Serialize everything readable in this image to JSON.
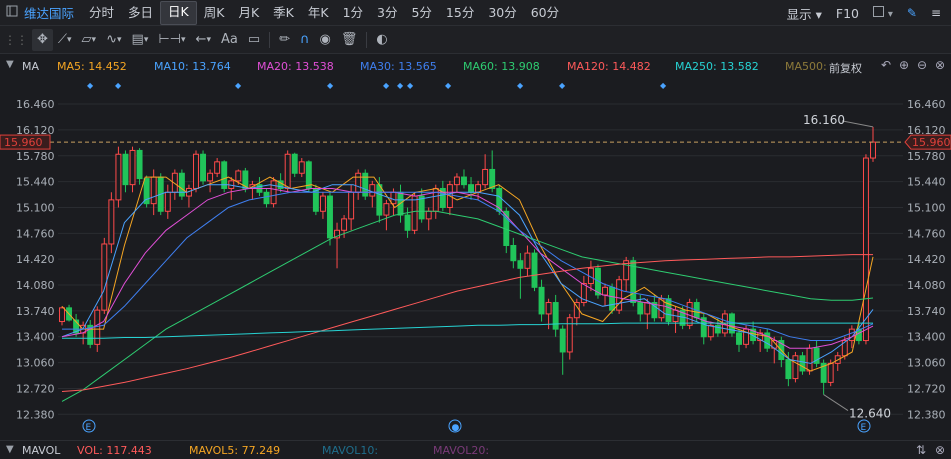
{
  "topbar": {
    "title": "维达国际",
    "periods": [
      "分时",
      "多日",
      "日K",
      "周K",
      "月K",
      "季K",
      "年K",
      "1分",
      "3分",
      "5分",
      "15分",
      "30分",
      "60分"
    ],
    "active_period": "日K",
    "display_label": "显示",
    "f10_label": "F10"
  },
  "toolbar": {
    "text_tool_label": "Aa",
    "tools": [
      "crosshair-icon",
      "line-icon",
      "channel-icon",
      "wave-icon",
      "fib-icon",
      "range-icon",
      "arrow-left-icon",
      "text-icon",
      "note-icon",
      "pencil-icon",
      "magnet-icon",
      "eye-icon",
      "trash-icon",
      "toggle-icon"
    ]
  },
  "ma_bar": {
    "name": "MA",
    "items": [
      {
        "label": "MA5: 14.452",
        "color": "#f5a623"
      },
      {
        "label": "MA10: 13.764",
        "color": "#4aa3ff"
      },
      {
        "label": "MA20: 13.538",
        "color": "#e04fd6"
      },
      {
        "label": "MA30: 13.565",
        "color": "#3f7ff0"
      },
      {
        "label": "MA60: 13.908",
        "color": "#2ecc71"
      },
      {
        "label": "MA120: 14.482",
        "color": "#ff5a5a"
      },
      {
        "label": "MA250: 13.582",
        "color": "#27d3d3"
      },
      {
        "label": "MA500:",
        "color": "#8d7a3a"
      }
    ],
    "adjust_label": "前复权"
  },
  "chart_data": {
    "type": "candlestick",
    "y_ticks": [
      "16.460",
      "16.120",
      "15.780",
      "15.440",
      "15.100",
      "14.760",
      "14.420",
      "14.080",
      "13.740",
      "13.400",
      "13.060",
      "12.720",
      "12.380"
    ],
    "ylim": [
      12.2,
      16.75
    ],
    "current_price": "15.960",
    "high_annotation": "16.160",
    "low_annotation": "12.640",
    "ohlc": [
      [
        13.6,
        13.8,
        13.55,
        13.78
      ],
      [
        13.78,
        13.82,
        13.6,
        13.62
      ],
      [
        13.62,
        13.7,
        13.4,
        13.45
      ],
      [
        13.45,
        13.6,
        13.3,
        13.55
      ],
      [
        13.55,
        13.62,
        13.25,
        13.3
      ],
      [
        13.3,
        13.8,
        13.2,
        13.75
      ],
      [
        13.75,
        14.7,
        13.7,
        14.62
      ],
      [
        14.62,
        15.3,
        14.5,
        15.2
      ],
      [
        15.2,
        15.9,
        15.1,
        15.8
      ],
      [
        15.8,
        15.85,
        15.3,
        15.4
      ],
      [
        15.4,
        15.9,
        15.3,
        15.85
      ],
      [
        15.85,
        15.88,
        15.4,
        15.48
      ],
      [
        15.48,
        15.52,
        15.1,
        15.15
      ],
      [
        15.15,
        15.6,
        15.0,
        15.5
      ],
      [
        15.5,
        15.55,
        15.0,
        15.05
      ],
      [
        15.05,
        15.4,
        14.95,
        15.3
      ],
      [
        15.3,
        15.6,
        15.2,
        15.55
      ],
      [
        15.55,
        15.6,
        15.2,
        15.25
      ],
      [
        15.25,
        15.4,
        15.1,
        15.35
      ],
      [
        15.35,
        15.85,
        15.3,
        15.8
      ],
      [
        15.8,
        15.85,
        15.4,
        15.45
      ],
      [
        15.45,
        15.6,
        15.3,
        15.55
      ],
      [
        15.55,
        15.75,
        15.5,
        15.7
      ],
      [
        15.7,
        15.72,
        15.3,
        15.35
      ],
      [
        15.35,
        15.5,
        15.2,
        15.45
      ],
      [
        15.45,
        15.6,
        15.4,
        15.58
      ],
      [
        15.58,
        15.62,
        15.3,
        15.35
      ],
      [
        15.35,
        15.45,
        15.2,
        15.4
      ],
      [
        15.4,
        15.5,
        15.25,
        15.3
      ],
      [
        15.3,
        15.35,
        15.1,
        15.15
      ],
      [
        15.15,
        15.5,
        15.1,
        15.45
      ],
      [
        15.45,
        15.55,
        15.3,
        15.35
      ],
      [
        15.35,
        15.85,
        15.3,
        15.8
      ],
      [
        15.8,
        15.82,
        15.5,
        15.55
      ],
      [
        15.55,
        15.75,
        15.5,
        15.7
      ],
      [
        15.7,
        15.72,
        15.3,
        15.35
      ],
      [
        15.35,
        15.4,
        15.0,
        15.05
      ],
      [
        15.05,
        15.3,
        14.95,
        15.25
      ],
      [
        15.25,
        15.3,
        14.6,
        14.7
      ],
      [
        14.7,
        14.9,
        14.3,
        14.8
      ],
      [
        14.8,
        15.0,
        14.7,
        14.95
      ],
      [
        14.95,
        15.4,
        14.8,
        15.3
      ],
      [
        15.3,
        15.6,
        15.2,
        15.55
      ],
      [
        15.55,
        15.6,
        15.2,
        15.25
      ],
      [
        15.25,
        15.45,
        15.1,
        15.4
      ],
      [
        15.4,
        15.5,
        14.9,
        15.0
      ],
      [
        15.0,
        15.2,
        14.8,
        15.15
      ],
      [
        15.15,
        15.35,
        15.0,
        15.3
      ],
      [
        15.3,
        15.4,
        14.9,
        15.0
      ],
      [
        15.0,
        15.1,
        14.7,
        14.8
      ],
      [
        14.8,
        15.3,
        14.75,
        15.25
      ],
      [
        15.25,
        15.35,
        14.9,
        14.95
      ],
      [
        14.95,
        15.1,
        14.8,
        15.05
      ],
      [
        15.05,
        15.4,
        14.95,
        15.35
      ],
      [
        15.35,
        15.45,
        15.05,
        15.1
      ],
      [
        15.1,
        15.45,
        15.0,
        15.4
      ],
      [
        15.4,
        15.55,
        15.3,
        15.5
      ],
      [
        15.5,
        15.6,
        15.35,
        15.4
      ],
      [
        15.4,
        15.5,
        15.2,
        15.3
      ],
      [
        15.3,
        15.45,
        15.2,
        15.4
      ],
      [
        15.4,
        15.8,
        15.35,
        15.6
      ],
      [
        15.6,
        15.85,
        15.3,
        15.35
      ],
      [
        15.35,
        15.4,
        15.0,
        15.05
      ],
      [
        15.05,
        15.1,
        14.5,
        14.6
      ],
      [
        14.6,
        14.7,
        14.3,
        14.4
      ],
      [
        14.4,
        14.5,
        13.9,
        14.3
      ],
      [
        14.3,
        14.6,
        14.2,
        14.5
      ],
      [
        14.5,
        14.55,
        14.0,
        14.05
      ],
      [
        14.05,
        14.15,
        13.6,
        13.7
      ],
      [
        13.7,
        13.9,
        13.5,
        13.85
      ],
      [
        13.85,
        13.95,
        13.4,
        13.5
      ],
      [
        13.5,
        13.55,
        12.9,
        13.2
      ],
      [
        13.2,
        13.7,
        13.1,
        13.65
      ],
      [
        13.65,
        13.9,
        13.55,
        13.85
      ],
      [
        13.85,
        14.2,
        13.8,
        14.1
      ],
      [
        14.1,
        14.4,
        14.0,
        14.3
      ],
      [
        14.3,
        14.35,
        13.9,
        13.95
      ],
      [
        13.95,
        14.1,
        13.8,
        14.05
      ],
      [
        14.05,
        14.1,
        13.7,
        13.75
      ],
      [
        13.75,
        14.2,
        13.7,
        14.15
      ],
      [
        14.15,
        14.45,
        14.0,
        14.4
      ],
      [
        14.4,
        14.45,
        13.8,
        13.85
      ],
      [
        13.85,
        13.95,
        13.6,
        13.7
      ],
      [
        13.7,
        13.9,
        13.5,
        13.85
      ],
      [
        13.85,
        13.95,
        13.6,
        13.65
      ],
      [
        13.65,
        13.95,
        13.6,
        13.9
      ],
      [
        13.9,
        13.95,
        13.55,
        13.6
      ],
      [
        13.6,
        13.8,
        13.45,
        13.75
      ],
      [
        13.75,
        13.8,
        13.5,
        13.55
      ],
      [
        13.55,
        13.9,
        13.5,
        13.85
      ],
      [
        13.85,
        13.9,
        13.6,
        13.65
      ],
      [
        13.65,
        13.7,
        13.3,
        13.4
      ],
      [
        13.4,
        13.6,
        13.35,
        13.55
      ],
      [
        13.55,
        13.65,
        13.4,
        13.45
      ],
      [
        13.45,
        13.75,
        13.4,
        13.7
      ],
      [
        13.7,
        13.72,
        13.4,
        13.45
      ],
      [
        13.45,
        13.5,
        13.2,
        13.3
      ],
      [
        13.3,
        13.55,
        13.25,
        13.5
      ],
      [
        13.5,
        13.6,
        13.3,
        13.35
      ],
      [
        13.35,
        13.5,
        13.2,
        13.45
      ],
      [
        13.45,
        13.5,
        13.2,
        13.25
      ],
      [
        13.25,
        13.4,
        13.05,
        13.35
      ],
      [
        13.35,
        13.4,
        13.0,
        13.1
      ],
      [
        13.1,
        13.2,
        12.75,
        12.85
      ],
      [
        12.85,
        13.2,
        12.8,
        13.15
      ],
      [
        13.15,
        13.2,
        12.9,
        12.95
      ],
      [
        12.95,
        13.3,
        12.9,
        13.25
      ],
      [
        13.25,
        13.35,
        13.0,
        13.05
      ],
      [
        13.05,
        13.1,
        12.64,
        12.8
      ],
      [
        12.8,
        13.1,
        12.75,
        13.05
      ],
      [
        13.05,
        13.2,
        12.95,
        13.15
      ],
      [
        13.15,
        13.4,
        13.1,
        13.35
      ],
      [
        13.35,
        13.55,
        13.25,
        13.5
      ],
      [
        13.5,
        13.6,
        13.3,
        13.35
      ],
      [
        13.35,
        15.8,
        13.3,
        15.75
      ],
      [
        15.75,
        16.16,
        15.7,
        15.96
      ]
    ],
    "ma": {
      "ma5": [
        13.8,
        13.5,
        13.5,
        14.6,
        15.5,
        15.5,
        15.3,
        15.4,
        15.5,
        15.35,
        15.5,
        15.35,
        15.4,
        15.3,
        15.5,
        15.5,
        15.1,
        15.3,
        15.35,
        15.2,
        15.3,
        15.4,
        15.2,
        14.6,
        14.1,
        13.7,
        13.6,
        13.9,
        14.05,
        13.85,
        13.75,
        13.7,
        13.55,
        13.45,
        13.4,
        13.1,
        12.95,
        13.05,
        13.2,
        14.45
      ],
      "ma10": [
        13.4,
        13.5,
        14.0,
        14.9,
        15.2,
        15.3,
        15.3,
        15.4,
        15.4,
        15.35,
        15.4,
        15.35,
        15.3,
        15.4,
        15.4,
        15.3,
        15.2,
        15.2,
        15.25,
        15.3,
        15.3,
        15.25,
        15.0,
        14.5,
        14.1,
        13.9,
        13.8,
        13.85,
        13.9,
        13.7,
        13.65,
        13.55,
        13.5,
        13.45,
        13.3,
        13.1,
        13.05,
        13.2,
        13.4,
        13.76
      ],
      "ma20": [
        13.4,
        13.45,
        13.6,
        14.1,
        14.5,
        14.8,
        15.0,
        15.2,
        15.3,
        15.35,
        15.35,
        15.3,
        15.35,
        15.35,
        15.3,
        15.3,
        15.3,
        15.25,
        15.3,
        15.3,
        15.25,
        15.1,
        14.8,
        14.5,
        14.3,
        14.1,
        13.95,
        13.9,
        13.85,
        13.8,
        13.7,
        13.6,
        13.55,
        13.5,
        13.4,
        13.25,
        13.25,
        13.3,
        13.4,
        13.54
      ],
      "ma30": [
        13.5,
        13.5,
        13.55,
        13.8,
        14.1,
        14.4,
        14.7,
        14.9,
        15.1,
        15.2,
        15.25,
        15.3,
        15.3,
        15.3,
        15.3,
        15.3,
        15.3,
        15.3,
        15.3,
        15.25,
        15.2,
        15.05,
        14.8,
        14.6,
        14.4,
        14.25,
        14.1,
        14.0,
        13.95,
        13.9,
        13.8,
        13.7,
        13.6,
        13.55,
        13.5,
        13.4,
        13.35,
        13.35,
        13.45,
        13.57
      ],
      "ma60": [
        12.55,
        12.7,
        12.9,
        13.1,
        13.3,
        13.5,
        13.65,
        13.8,
        13.95,
        14.1,
        14.25,
        14.4,
        14.55,
        14.7,
        14.8,
        14.9,
        15.0,
        15.05,
        15.05,
        15.0,
        14.95,
        14.85,
        14.75,
        14.65,
        14.55,
        14.45,
        14.4,
        14.35,
        14.3,
        14.25,
        14.2,
        14.15,
        14.1,
        14.05,
        14.0,
        13.95,
        13.9,
        13.88,
        13.88,
        13.91
      ],
      "ma120": [
        12.68,
        12.7,
        12.75,
        12.8,
        12.86,
        12.92,
        12.98,
        13.05,
        13.12,
        13.2,
        13.28,
        13.36,
        13.44,
        13.52,
        13.6,
        13.68,
        13.76,
        13.84,
        13.92,
        14.0,
        14.06,
        14.12,
        14.18,
        14.22,
        14.26,
        14.3,
        14.33,
        14.36,
        14.38,
        14.4,
        14.41,
        14.42,
        14.43,
        14.44,
        14.45,
        14.45,
        14.46,
        14.47,
        14.48,
        14.48
      ],
      "ma250": [
        13.38,
        13.38,
        13.38,
        13.39,
        13.39,
        13.4,
        13.41,
        13.42,
        13.43,
        13.44,
        13.45,
        13.46,
        13.47,
        13.48,
        13.49,
        13.5,
        13.51,
        13.52,
        13.53,
        13.54,
        13.55,
        13.55,
        13.56,
        13.56,
        13.57,
        13.57,
        13.57,
        13.58,
        13.58,
        13.58,
        13.58,
        13.58,
        13.58,
        13.58,
        13.58,
        13.58,
        13.58,
        13.58,
        13.58,
        13.58
      ]
    }
  },
  "vol_bar": {
    "name": "MAVOL",
    "items": [
      {
        "label": "VOL: 117.443",
        "color": "#ff5a5a"
      },
      {
        "label": "MAVOL5: 77.249",
        "color": "#f5a623"
      },
      {
        "label": "MAVOL10:",
        "color": "#1f6e8c"
      },
      {
        "label": "MAVOL20:",
        "color": "#7a3a78"
      }
    ]
  },
  "colors": {
    "up": "#ff4a4a",
    "down": "#21c45a",
    "grid": "#2a2c31",
    "dash": "#c8a060",
    "price_tag": "#e0403a"
  }
}
